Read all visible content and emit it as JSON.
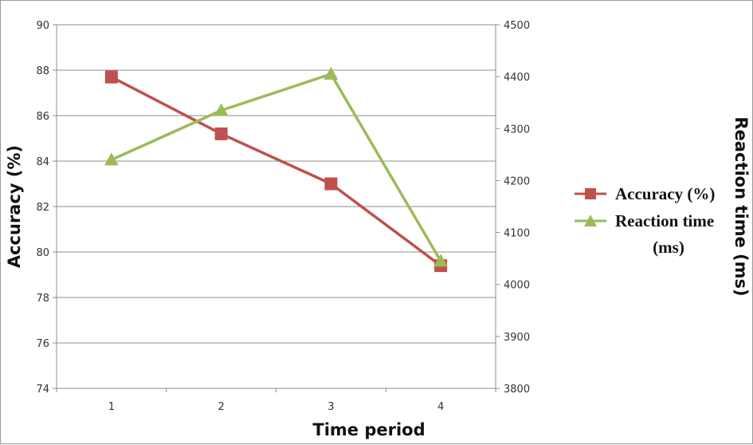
{
  "chart_data": {
    "type": "line",
    "xlabel": "Time period",
    "ylabel_left": "Accuracy (%)",
    "ylabel_right": "Reaction time (ms)",
    "x": [
      1,
      2,
      3,
      4
    ],
    "x_tick_labels": [
      "1",
      "2",
      "3",
      "4"
    ],
    "y_left_lim": [
      74,
      90
    ],
    "y_left_ticks": [
      74,
      76,
      78,
      80,
      82,
      84,
      86,
      88,
      90
    ],
    "y_right_lim": [
      3800,
      4500
    ],
    "y_right_ticks": [
      3800,
      3900,
      4000,
      4100,
      4200,
      4300,
      4400,
      4500
    ],
    "grid": "horizontal",
    "legend_position": "right",
    "series": [
      {
        "name": "Accuracy (%)",
        "axis": "left",
        "marker": "square",
        "color": "#c0504d",
        "values": [
          87.7,
          85.2,
          83.0,
          79.4
        ]
      },
      {
        "name": "Reaction time (ms)",
        "legend_lines": [
          "Reaction time",
          "(ms)"
        ],
        "axis": "right",
        "marker": "triangle",
        "color": "#9bbb59",
        "values": [
          4240,
          4335,
          4405,
          4045
        ]
      }
    ]
  }
}
